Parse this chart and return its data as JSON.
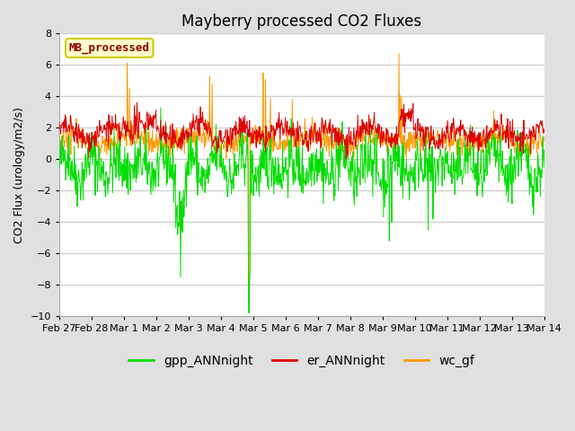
{
  "title": "Mayberry processed CO2 Fluxes",
  "ylabel": "CO2 Flux (urology/m2/s)",
  "ylim": [
    -10,
    8
  ],
  "yticks": [
    -10,
    -8,
    -6,
    -4,
    -2,
    0,
    2,
    4,
    6,
    8
  ],
  "fig_bg_color": "#e0e0e0",
  "plot_bg_color": "#ffffff",
  "grid_color": "#d0d0d0",
  "legend_label": "MB_processed",
  "legend_text_color": "#8b0000",
  "legend_box_color": "#ffffcc",
  "legend_box_edge": "#cccc00",
  "colors": {
    "gpp_ANNnight": "#00dd00",
    "er_ANNnight": "#dd0000",
    "wc_gf": "#ff9900"
  },
  "series_labels": [
    "gpp_ANNnight",
    "er_ANNnight",
    "wc_gf"
  ],
  "x_start_day": 58,
  "x_end_day": 73,
  "n_points": 1000,
  "xtick_labels": [
    "Feb 27",
    "Feb 28",
    "Mar 1",
    "Mar 2",
    "Mar 3",
    "Mar 4",
    "Mar 5",
    "Mar 6",
    "Mar 7",
    "Mar 8",
    "Mar 9",
    "Mar 10",
    "Mar 11",
    "Mar 12",
    "Mar 13",
    "Mar 14"
  ],
  "xtick_days": [
    58,
    59,
    60,
    61,
    62,
    63,
    64,
    65,
    66,
    67,
    68,
    69,
    70,
    71,
    72,
    73
  ],
  "linewidth": 0.7,
  "title_fontsize": 12,
  "label_fontsize": 9,
  "tick_fontsize": 8
}
